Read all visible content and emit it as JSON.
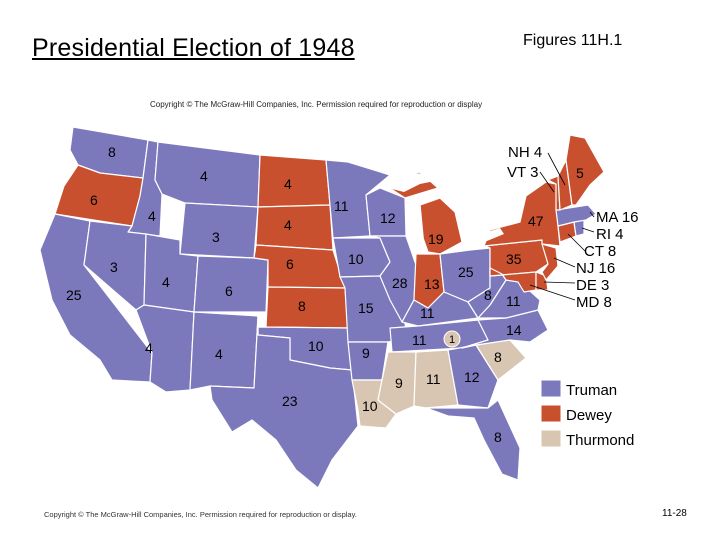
{
  "title": "Presidential Election of 1948",
  "figure_ref": "Figures 11H.1",
  "map_copyright": "Copyright © The McGraw-Hill Companies, Inc. Permission required for reproduction or display",
  "footer_copyright": "Copyright © The McGraw-Hill Companies, Inc. Permission required for reproduction or display.",
  "page_number": "11-28",
  "colors": {
    "truman": "#7c78bc",
    "dewey": "#c8502f",
    "thurmond": "#d8c6b2",
    "lake": "#ffffff"
  },
  "legend": [
    {
      "label": "Truman",
      "party": "truman"
    },
    {
      "label": "Dewey",
      "party": "dewey"
    },
    {
      "label": "Thurmond",
      "party": "thurmond"
    }
  ],
  "states": {
    "WA": {
      "votes": "8",
      "party": "truman"
    },
    "OR": {
      "votes": "6",
      "party": "dewey"
    },
    "CA": {
      "votes": "25",
      "party": "truman"
    },
    "ID": {
      "votes": "4",
      "party": "truman"
    },
    "NV": {
      "votes": "3",
      "party": "truman"
    },
    "MT": {
      "votes": "4",
      "party": "truman"
    },
    "WY": {
      "votes": "3",
      "party": "truman"
    },
    "UT": {
      "votes": "4",
      "party": "truman"
    },
    "AZ": {
      "votes": "4",
      "party": "truman"
    },
    "CO": {
      "votes": "6",
      "party": "truman"
    },
    "NM": {
      "votes": "4",
      "party": "truman"
    },
    "ND": {
      "votes": "4",
      "party": "dewey"
    },
    "SD": {
      "votes": "4",
      "party": "dewey"
    },
    "NE": {
      "votes": "6",
      "party": "dewey"
    },
    "KS": {
      "votes": "8",
      "party": "dewey"
    },
    "OK": {
      "votes": "10",
      "party": "truman"
    },
    "TX": {
      "votes": "23",
      "party": "truman"
    },
    "MN": {
      "votes": "11",
      "party": "truman"
    },
    "IA": {
      "votes": "10",
      "party": "truman"
    },
    "MO": {
      "votes": "15",
      "party": "truman"
    },
    "AR": {
      "votes": "9",
      "party": "truman"
    },
    "LA": {
      "votes": "10",
      "party": "thurmond"
    },
    "WI": {
      "votes": "12",
      "party": "truman"
    },
    "IL": {
      "votes": "28",
      "party": "truman"
    },
    "MI": {
      "votes": "19",
      "party": "dewey"
    },
    "IN": {
      "votes": "13",
      "party": "dewey"
    },
    "OH": {
      "votes": "25",
      "party": "truman"
    },
    "KY": {
      "votes": "11",
      "party": "truman"
    },
    "TN": {
      "votes": "11",
      "party": "truman"
    },
    "TN_thurmond": {
      "votes": "1",
      "party": "thurmond"
    },
    "MS": {
      "votes": "9",
      "party": "thurmond"
    },
    "AL": {
      "votes": "11",
      "party": "thurmond"
    },
    "GA": {
      "votes": "12",
      "party": "truman"
    },
    "FL": {
      "votes": "8",
      "party": "truman"
    },
    "SC": {
      "votes": "8",
      "party": "thurmond"
    },
    "NC": {
      "votes": "14",
      "party": "truman"
    },
    "VA": {
      "votes": "11",
      "party": "truman"
    },
    "WV": {
      "votes": "8",
      "party": "truman"
    },
    "PA": {
      "votes": "35",
      "party": "dewey"
    },
    "NY": {
      "votes": "47",
      "party": "dewey"
    },
    "ME": {
      "votes": "5",
      "party": "dewey"
    },
    "NH": {
      "votes": "4",
      "party": "dewey"
    },
    "VT": {
      "votes": "3",
      "party": "dewey"
    },
    "MA": {
      "votes": "16",
      "party": "truman"
    },
    "RI": {
      "votes": "4",
      "party": "truman"
    },
    "CT": {
      "votes": "8",
      "party": "dewey"
    },
    "NJ": {
      "votes": "16",
      "party": "dewey"
    },
    "DE": {
      "votes": "3",
      "party": "dewey"
    },
    "MD": {
      "votes": "8",
      "party": "dewey"
    }
  },
  "callouts": {
    "NH": "NH 4",
    "VT": "VT 3",
    "MA": "MA 16",
    "RI": "RI 4",
    "CT": "CT 8",
    "NJ": "NJ 16",
    "DE": "DE 3",
    "MD": "MD 8"
  }
}
